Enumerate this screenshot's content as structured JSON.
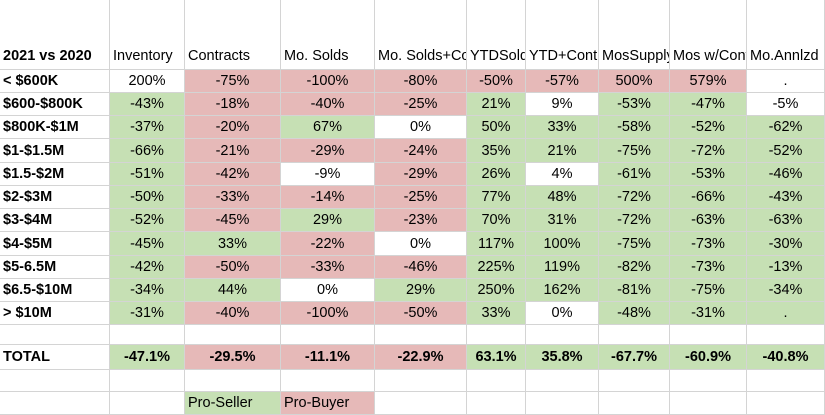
{
  "colors": {
    "pro_seller": "#c6e0b4",
    "pro_buyer": "#e6b9b8",
    "neutral": "#ffffff"
  },
  "header": {
    "corner": "2021 vs 2020",
    "columns": [
      [
        "Inventory"
      ],
      [
        "Contracts"
      ],
      [
        "Mo. Solds"
      ],
      [
        "Mo. Solds+",
        "Contracts"
      ],
      [
        "YTD",
        "Solds"
      ],
      [
        "YTD+",
        "Contracts"
      ],
      [
        "Mos",
        "Supply"
      ],
      [
        "Mos w/",
        "Contracts"
      ],
      [
        "Mo.",
        "Annlzd"
      ]
    ]
  },
  "rows": [
    {
      "label": "< $600K",
      "values": [
        "200%",
        "-75%",
        "-100%",
        "-80%",
        "-50%",
        "-57%",
        "500%",
        "579%",
        "."
      ],
      "colors": [
        "w",
        "p",
        "p",
        "p",
        "p",
        "p",
        "p",
        "p",
        "w"
      ]
    },
    {
      "label": "$600-$800K",
      "values": [
        "-43%",
        "-18%",
        "-40%",
        "-25%",
        "21%",
        "9%",
        "-53%",
        "-47%",
        "-5%"
      ],
      "colors": [
        "g",
        "p",
        "p",
        "p",
        "g",
        "w",
        "g",
        "g",
        "w"
      ]
    },
    {
      "label": "$800K-$1M",
      "values": [
        "-37%",
        "-20%",
        "67%",
        "0%",
        "50%",
        "33%",
        "-58%",
        "-52%",
        "-62%"
      ],
      "colors": [
        "g",
        "p",
        "g",
        "w",
        "g",
        "g",
        "g",
        "g",
        "g"
      ]
    },
    {
      "label": "$1-$1.5M",
      "values": [
        "-66%",
        "-21%",
        "-29%",
        "-24%",
        "35%",
        "21%",
        "-75%",
        "-72%",
        "-52%"
      ],
      "colors": [
        "g",
        "p",
        "p",
        "p",
        "g",
        "g",
        "g",
        "g",
        "g"
      ]
    },
    {
      "label": "$1.5-$2M",
      "values": [
        "-51%",
        "-42%",
        "-9%",
        "-29%",
        "26%",
        "4%",
        "-61%",
        "-53%",
        "-46%"
      ],
      "colors": [
        "g",
        "p",
        "w",
        "p",
        "g",
        "w",
        "g",
        "g",
        "g"
      ]
    },
    {
      "label": "$2-$3M",
      "values": [
        "-50%",
        "-33%",
        "-14%",
        "-25%",
        "77%",
        "48%",
        "-72%",
        "-66%",
        "-43%"
      ],
      "colors": [
        "g",
        "p",
        "p",
        "p",
        "g",
        "g",
        "g",
        "g",
        "g"
      ]
    },
    {
      "label": "$3-$4M",
      "values": [
        "-52%",
        "-45%",
        "29%",
        "-23%",
        "70%",
        "31%",
        "-72%",
        "-63%",
        "-63%"
      ],
      "colors": [
        "g",
        "p",
        "g",
        "p",
        "g",
        "g",
        "g",
        "g",
        "g"
      ]
    },
    {
      "label": "$4-$5M",
      "values": [
        "-45%",
        "33%",
        "-22%",
        "0%",
        "117%",
        "100%",
        "-75%",
        "-73%",
        "-30%"
      ],
      "colors": [
        "g",
        "g",
        "p",
        "w",
        "g",
        "g",
        "g",
        "g",
        "g"
      ]
    },
    {
      "label": "$5-6.5M",
      "values": [
        "-42%",
        "-50%",
        "-33%",
        "-46%",
        "225%",
        "119%",
        "-82%",
        "-73%",
        "-13%"
      ],
      "colors": [
        "g",
        "p",
        "p",
        "p",
        "g",
        "g",
        "g",
        "g",
        "g"
      ]
    },
    {
      "label": "$6.5-$10M",
      "values": [
        "-34%",
        "44%",
        "0%",
        "29%",
        "250%",
        "162%",
        "-81%",
        "-75%",
        "-34%"
      ],
      "colors": [
        "g",
        "g",
        "w",
        "g",
        "g",
        "g",
        "g",
        "g",
        "g"
      ]
    },
    {
      "label": "> $10M",
      "values": [
        "-31%",
        "-40%",
        "-100%",
        "-50%",
        "33%",
        "0%",
        "-48%",
        "-31%",
        "."
      ],
      "colors": [
        "g",
        "p",
        "p",
        "p",
        "g",
        "w",
        "g",
        "g",
        "g"
      ]
    }
  ],
  "total": {
    "label": "TOTAL",
    "values": [
      "-47.1%",
      "-29.5%",
      "-11.1%",
      "-22.9%",
      "63.1%",
      "35.8%",
      "-67.7%",
      "-60.9%",
      "-40.8%"
    ],
    "colors": [
      "g",
      "p",
      "p",
      "p",
      "g",
      "g",
      "g",
      "g",
      "g"
    ]
  },
  "legend": {
    "pro_seller": "Pro-Seller",
    "pro_buyer": "Pro-Buyer"
  }
}
